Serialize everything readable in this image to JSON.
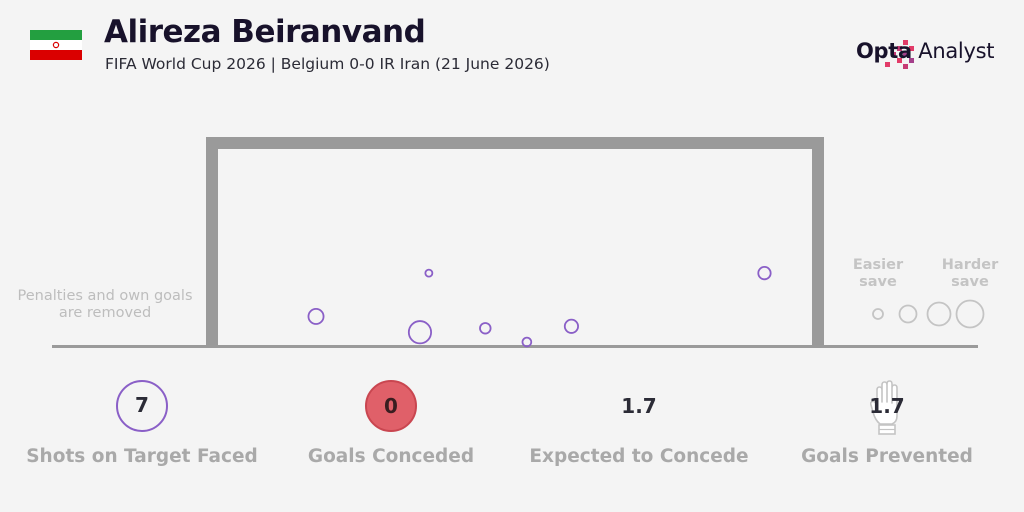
{
  "header": {
    "player": "Alireza Beiranvand",
    "subtitle": "FIFA World Cup 2026 | Belgium 0-0 IR Iran (21 June 2026)"
  },
  "branding": {
    "logo_bold": "Opta",
    "logo_rest": " Analyst"
  },
  "colors": {
    "accent": "#8a5fc7",
    "conceded": "#e06069",
    "goal_frame": "#9a9a9a",
    "muted_text": "#a9a9a9"
  },
  "flag": {
    "icon": "iran-flag-icon"
  },
  "note": {
    "line1": "Penalties and own goals",
    "line2": "are removed"
  },
  "legend": {
    "easier_1": "Easier",
    "easier_2": "save",
    "harder_1": "Harder",
    "harder_2": "save"
  },
  "chart_data": {
    "type": "scatter",
    "title": "",
    "description_units": "x: 0 = left post, 1 = right post; y: 0 = ground line, 1 = crossbar; size: relative save difficulty 0-1",
    "shots": [
      {
        "x": 0.165,
        "y": 0.15,
        "size": 0.45
      },
      {
        "x": 0.355,
        "y": 0.37,
        "size": 0.0
      },
      {
        "x": 0.34,
        "y": 0.07,
        "size": 0.85
      },
      {
        "x": 0.45,
        "y": 0.09,
        "size": 0.2
      },
      {
        "x": 0.52,
        "y": 0.02,
        "size": 0.1
      },
      {
        "x": 0.595,
        "y": 0.1,
        "size": 0.35
      },
      {
        "x": 0.92,
        "y": 0.37,
        "size": 0.3
      }
    ]
  },
  "stats": {
    "shots_on_target": {
      "value": "7",
      "label": "Shots on Target Faced"
    },
    "goals_conceded": {
      "value": "0",
      "label": "Goals Conceded"
    },
    "xg_conceded": {
      "value": "1.7",
      "label": "Expected to Concede"
    },
    "goals_prevented": {
      "value": "1.7",
      "label": "Goals Prevented",
      "icon": "goalkeeper-glove-icon"
    }
  }
}
